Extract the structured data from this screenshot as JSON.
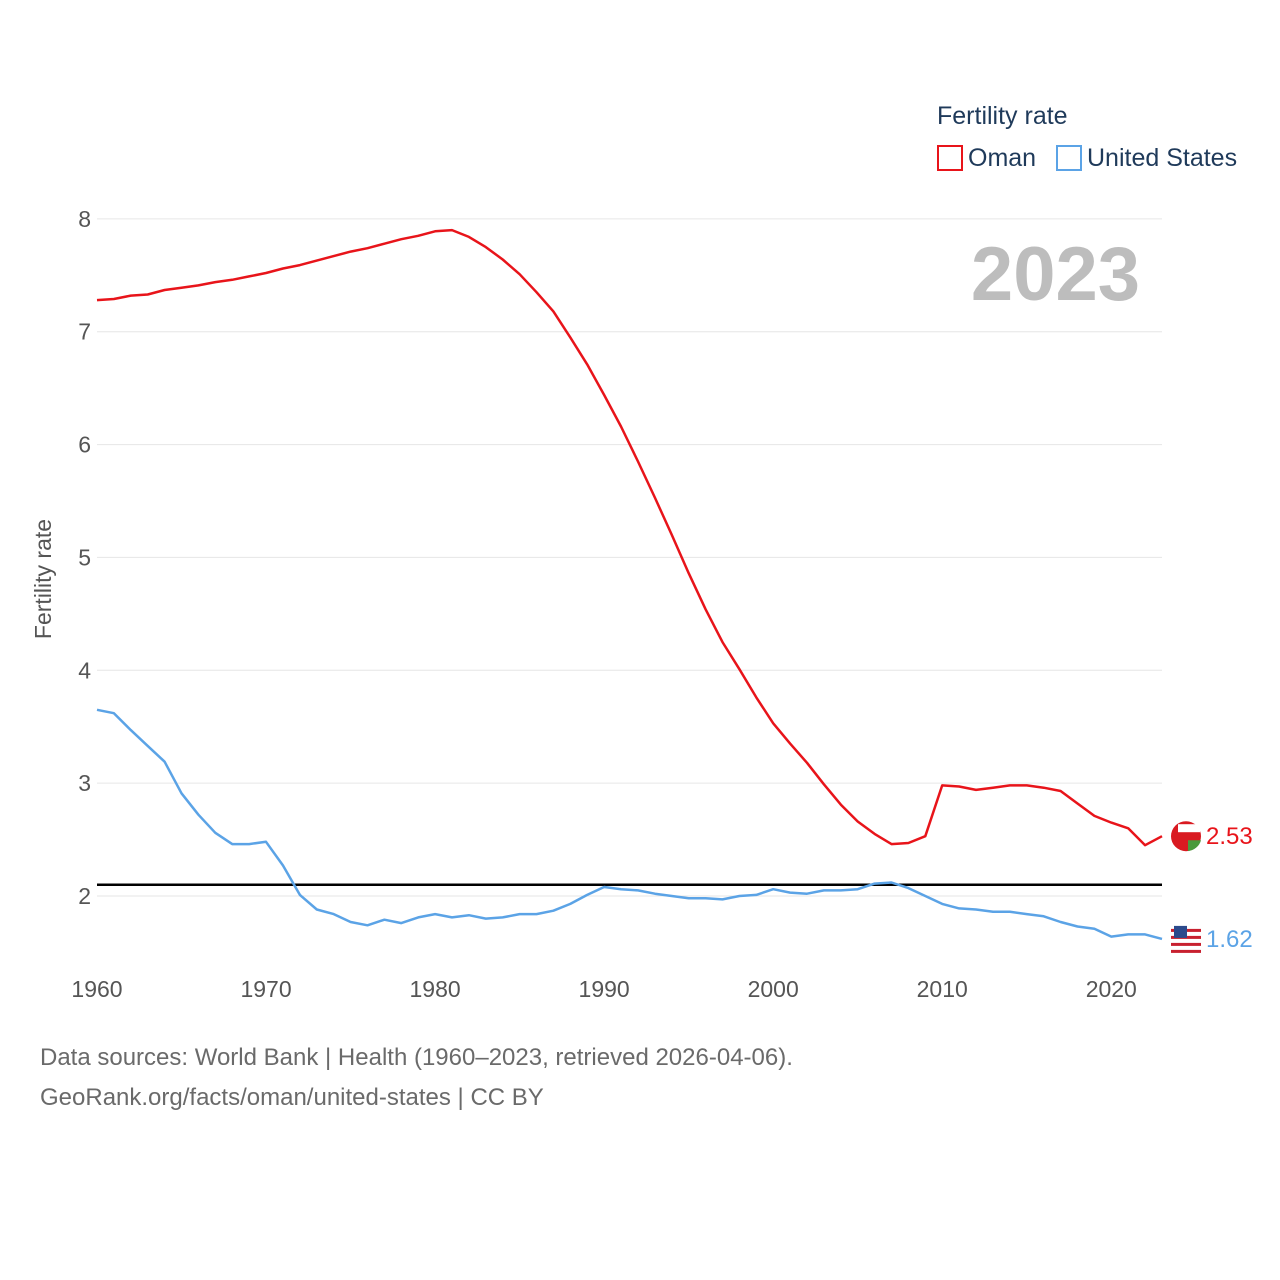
{
  "legend": {
    "title": "Fertility rate",
    "items": [
      {
        "label": "Oman",
        "color": "#e8141a"
      },
      {
        "label": "United States",
        "color": "#5ba3e6"
      }
    ]
  },
  "year_label": "2023",
  "footer": {
    "line1": "Data sources: World Bank | Health (1960–2023, retrieved 2026-04-06).",
    "line2": "GeoRank.org/facts/oman/united-states | CC BY"
  },
  "chart_data": {
    "type": "line",
    "title": "",
    "xlabel": "",
    "ylabel": "Fertility rate",
    "xlim": [
      1960,
      2023
    ],
    "ylim": [
      1.3,
      8.3
    ],
    "x_ticks": [
      "1960",
      "1970",
      "1980",
      "1990",
      "2000",
      "2010",
      "2020"
    ],
    "y_ticks": [
      "2",
      "3",
      "4",
      "5",
      "6",
      "7",
      "8"
    ],
    "reference_line": {
      "value": 2.1
    },
    "x": [
      1960,
      1961,
      1962,
      1963,
      1964,
      1965,
      1966,
      1967,
      1968,
      1969,
      1970,
      1971,
      1972,
      1973,
      1974,
      1975,
      1976,
      1977,
      1978,
      1979,
      1980,
      1981,
      1982,
      1983,
      1984,
      1985,
      1986,
      1987,
      1988,
      1989,
      1990,
      1991,
      1992,
      1993,
      1994,
      1995,
      1996,
      1997,
      1998,
      1999,
      2000,
      2001,
      2002,
      2003,
      2004,
      2005,
      2006,
      2007,
      2008,
      2009,
      2010,
      2011,
      2012,
      2013,
      2014,
      2015,
      2016,
      2017,
      2018,
      2019,
      2020,
      2021,
      2022,
      2023
    ],
    "series": [
      {
        "name": "Oman",
        "color": "#e8141a",
        "end_label": "2.53",
        "values": [
          7.28,
          7.29,
          7.32,
          7.33,
          7.37,
          7.39,
          7.41,
          7.44,
          7.46,
          7.49,
          7.52,
          7.56,
          7.59,
          7.63,
          7.67,
          7.71,
          7.74,
          7.78,
          7.82,
          7.85,
          7.89,
          7.9,
          7.84,
          7.75,
          7.64,
          7.51,
          7.35,
          7.18,
          6.95,
          6.71,
          6.44,
          6.16,
          5.85,
          5.53,
          5.2,
          4.86,
          4.54,
          4.25,
          4.01,
          3.76,
          3.53,
          3.35,
          3.18,
          2.99,
          2.81,
          2.66,
          2.55,
          2.46,
          2.47,
          2.53,
          2.98,
          2.97,
          2.94,
          2.96,
          2.98,
          2.98,
          2.96,
          2.93,
          2.82,
          2.71,
          2.65,
          2.6,
          2.45,
          2.53
        ]
      },
      {
        "name": "United States",
        "color": "#5ba3e6",
        "end_label": "1.62",
        "values": [
          3.65,
          3.62,
          3.47,
          3.33,
          3.19,
          2.91,
          2.72,
          2.56,
          2.46,
          2.46,
          2.48,
          2.27,
          2.01,
          1.88,
          1.84,
          1.77,
          1.74,
          1.79,
          1.76,
          1.81,
          1.84,
          1.81,
          1.83,
          1.8,
          1.81,
          1.84,
          1.84,
          1.87,
          1.93,
          2.01,
          2.08,
          2.06,
          2.05,
          2.02,
          2.0,
          1.98,
          1.98,
          1.97,
          2.0,
          2.01,
          2.06,
          2.03,
          2.02,
          2.05,
          2.05,
          2.06,
          2.11,
          2.12,
          2.07,
          2.0,
          1.93,
          1.89,
          1.88,
          1.86,
          1.86,
          1.84,
          1.82,
          1.77,
          1.73,
          1.71,
          1.64,
          1.66,
          1.66,
          1.62
        ]
      }
    ]
  }
}
